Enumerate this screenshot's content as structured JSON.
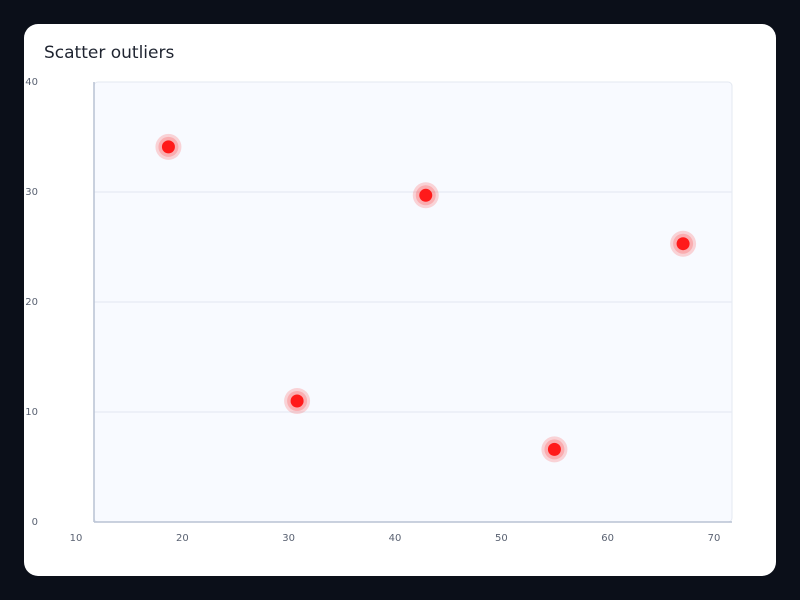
{
  "chart_data": {
    "type": "scatter",
    "title": "Scatter outliers",
    "xlabel": "",
    "ylabel": "",
    "xlim": [
      10,
      70
    ],
    "ylim": [
      0,
      40
    ],
    "x_ticks": [
      10,
      20,
      30,
      40,
      50,
      60,
      70
    ],
    "y_ticks": [
      0,
      10,
      20,
      30,
      40
    ],
    "grid": true,
    "series": [
      {
        "points": [
          {
            "x": 17.0,
            "y": 34.1
          },
          {
            "x": 29.1,
            "y": 11.0
          },
          {
            "x": 41.2,
            "y": 29.7
          },
          {
            "x": 53.3,
            "y": 6.6
          },
          {
            "x": 65.4,
            "y": 25.3
          }
        ],
        "color": "#ff1a1a"
      }
    ]
  }
}
